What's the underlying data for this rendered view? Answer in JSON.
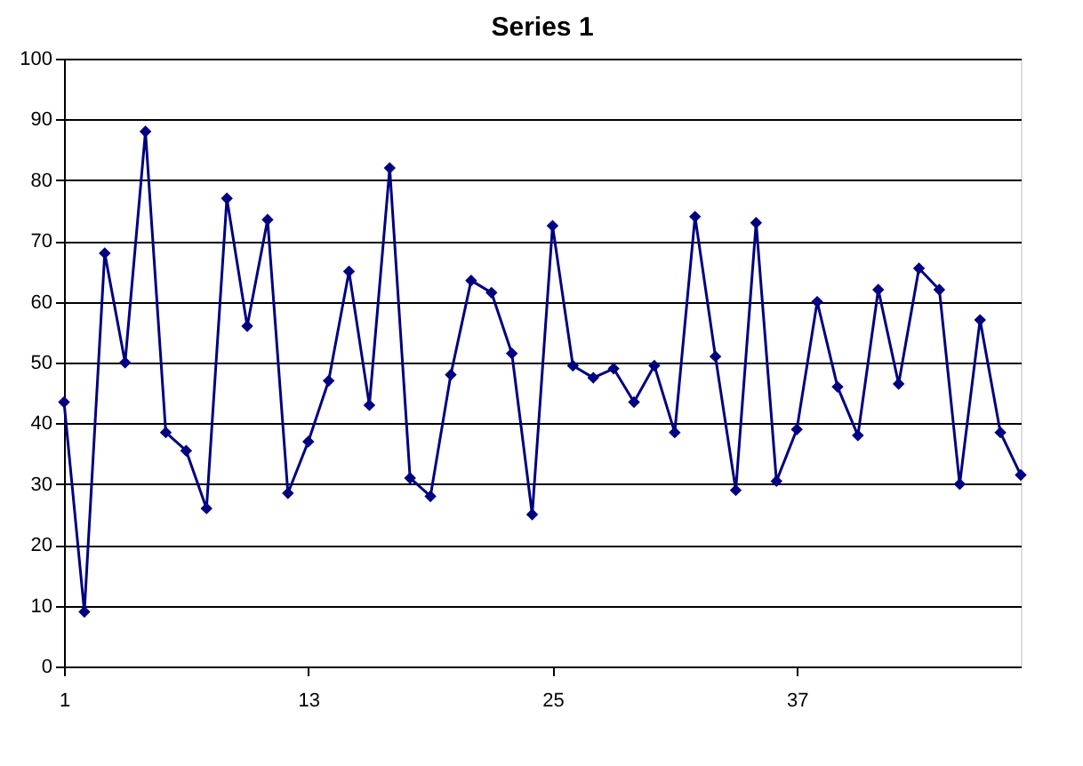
{
  "chart_data": {
    "type": "line",
    "title": "Series 1",
    "x": [
      1,
      2,
      3,
      4,
      5,
      6,
      7,
      8,
      9,
      10,
      11,
      12,
      13,
      14,
      15,
      16,
      17,
      18,
      19,
      20,
      21,
      22,
      23,
      24,
      25,
      26,
      27,
      28,
      29,
      30,
      31,
      32,
      33,
      34,
      35,
      36,
      37,
      38,
      39,
      40,
      41,
      42,
      43,
      44,
      45,
      46,
      47,
      48
    ],
    "series": [
      {
        "color": "#000080",
        "values": [
          43.5,
          9,
          68,
          50,
          88,
          38.5,
          35.5,
          26,
          77,
          56,
          73.5,
          28.5,
          37,
          47,
          65,
          43,
          82,
          31,
          28,
          48,
          63.5,
          61.5,
          51.5,
          25,
          72.5,
          49.5,
          47.5,
          49,
          43.5,
          49.5,
          38.5,
          74,
          51,
          29,
          73,
          30.5,
          39,
          60,
          46,
          38,
          62,
          46.5,
          65.5,
          62,
          30,
          57,
          38.5,
          31.5
        ]
      }
    ],
    "xlim": [
      1,
      48
    ],
    "xticks": [
      1,
      13,
      25,
      37
    ],
    "ylim": [
      0,
      100
    ],
    "yticks": [
      0,
      10,
      20,
      30,
      40,
      50,
      60,
      70,
      80,
      90,
      100
    ],
    "grid": "y",
    "marker": "diamond",
    "line_style": "solid"
  }
}
